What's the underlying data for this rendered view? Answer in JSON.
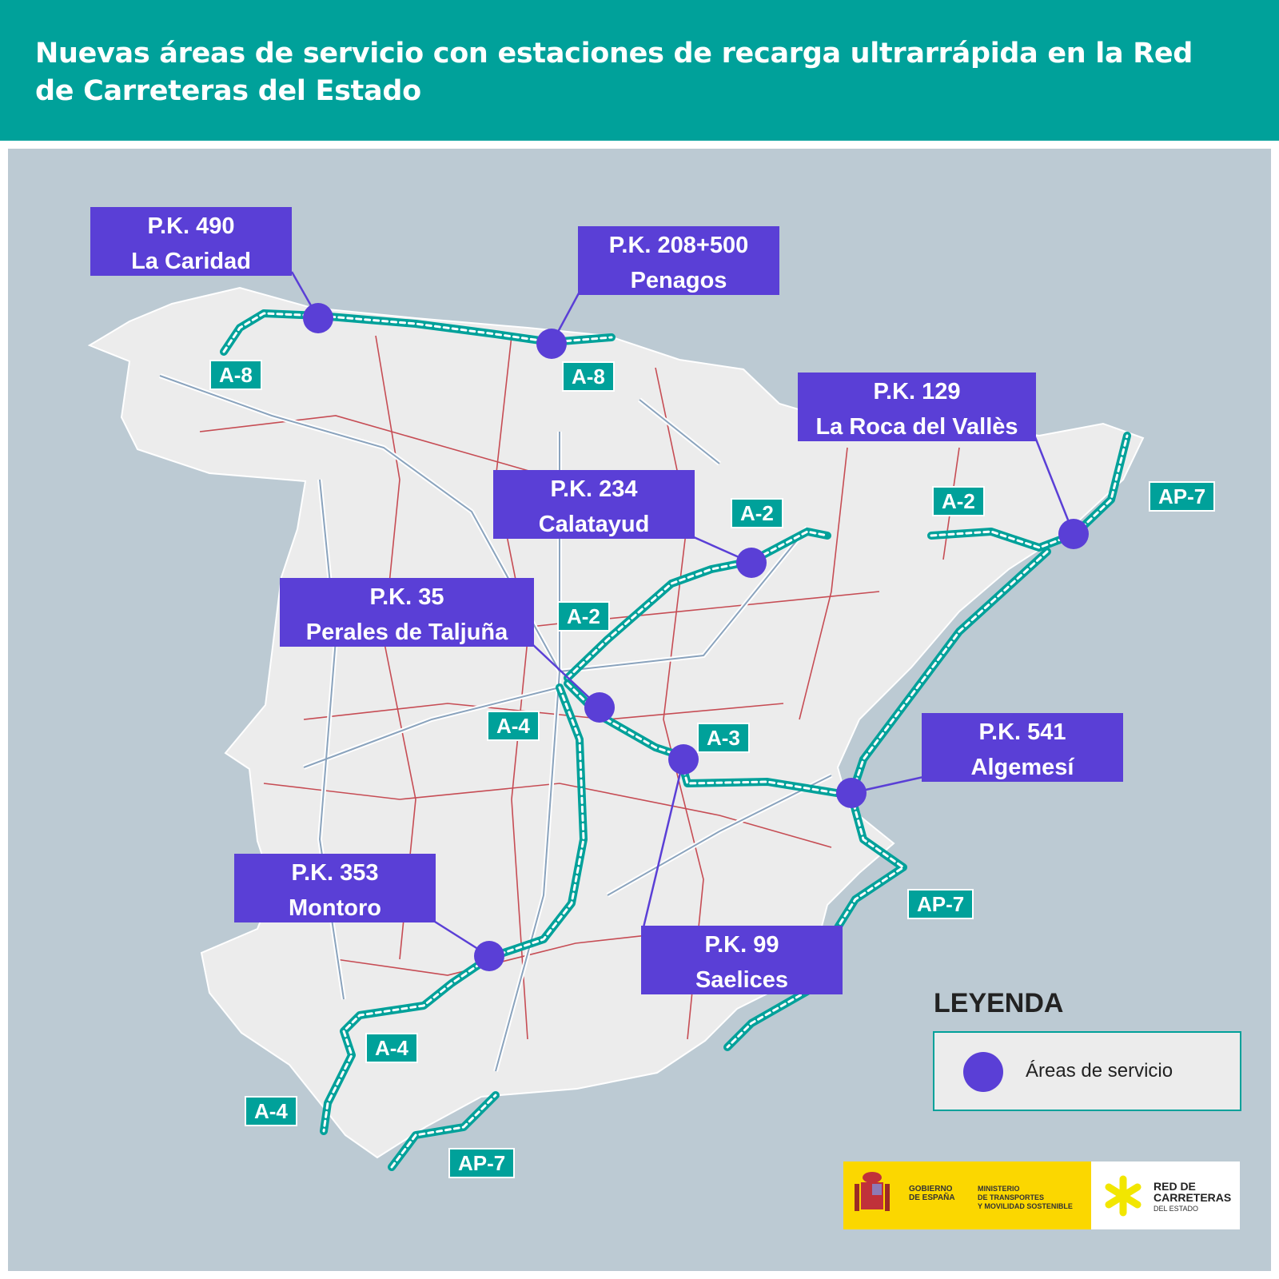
{
  "header": {
    "title": "Nuevas áreas de servicio con estaciones de recarga ultrarrápida en la Red de Carreteras del Estado"
  },
  "service_areas": [
    {
      "pk": "P.K. 490",
      "name": "La Caridad",
      "road": "A-8"
    },
    {
      "pk": "P.K. 208+500",
      "name": "Penagos",
      "road": "A-8"
    },
    {
      "pk": "P.K. 129",
      "name": "La Roca del Vallès",
      "road": "AP-7"
    },
    {
      "pk": "P.K. 234",
      "name": "Calatayud",
      "road": "A-2"
    },
    {
      "pk": "P.K. 35",
      "name": "Perales de Taljuña",
      "road": "A-3"
    },
    {
      "pk": "P.K. 541",
      "name": "Algemesí",
      "road": "AP-7"
    },
    {
      "pk": "P.K. 353",
      "name": "Montoro",
      "road": "A-4"
    },
    {
      "pk": "P.K. 99",
      "name": "Saelices",
      "road": "A-3"
    }
  ],
  "road_labels": [
    "A-8",
    "A-8",
    "A-2",
    "A-2",
    "AP-7",
    "A-2",
    "A-4",
    "A-3",
    "AP-7",
    "A-4",
    "A-4",
    "AP-7"
  ],
  "legend": {
    "title": "LEYENDA",
    "item": "Áreas de servicio",
    "marker_color": "#5a3fd6"
  },
  "logos": {
    "gobierno": "GOBIERNO\nDE ESPAÑA",
    "ministerio": "MINISTERIO\nDE TRANSPORTES\nY MOVILIDAD SOSTENIBLE",
    "red": "RED DE\nCARRETERAS",
    "red_sub": "DEL ESTADO"
  },
  "colors": {
    "header": "#00a19a",
    "marker": "#5a3fd6",
    "highlighted_route": "#00a19a",
    "road_red": "#c0313a",
    "road_gray": "#8aa3bd"
  }
}
